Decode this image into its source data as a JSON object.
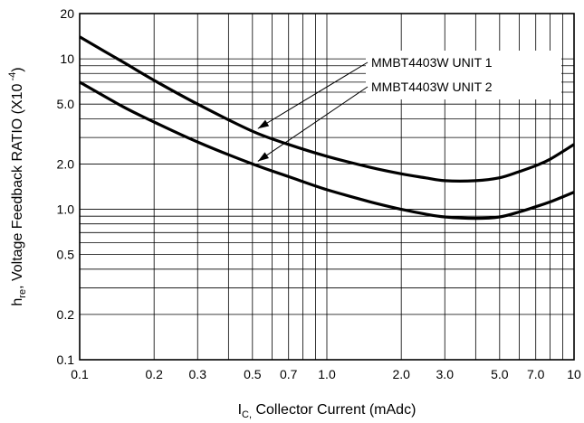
{
  "chart_data": {
    "type": "line",
    "x_scale": "log",
    "y_scale": "log",
    "xlim": [
      0.1,
      10
    ],
    "ylim": [
      0.1,
      20
    ],
    "grid": true,
    "x_ticks": [
      {
        "v": 0.1,
        "label": "0.1"
      },
      {
        "v": 0.2,
        "label": "0.2"
      },
      {
        "v": 0.3,
        "label": "0.3"
      },
      {
        "v": 0.5,
        "label": "0.5"
      },
      {
        "v": 0.7,
        "label": "0.7"
      },
      {
        "v": 1.0,
        "label": "1.0"
      },
      {
        "v": 2.0,
        "label": "2.0"
      },
      {
        "v": 3.0,
        "label": "3.0"
      },
      {
        "v": 5.0,
        "label": "5.0"
      },
      {
        "v": 7.0,
        "label": "7.0"
      },
      {
        "v": 10,
        "label": "10"
      }
    ],
    "y_ticks": [
      {
        "v": 0.1,
        "label": "0.1"
      },
      {
        "v": 0.2,
        "label": "0.2"
      },
      {
        "v": 0.5,
        "label": "0.5"
      },
      {
        "v": 1.0,
        "label": "1.0"
      },
      {
        "v": 2.0,
        "label": "2.0"
      },
      {
        "v": 5.0,
        "label": "5.0"
      },
      {
        "v": 10,
        "label": "10"
      },
      {
        "v": 20,
        "label": "20"
      }
    ],
    "xlabel": {
      "main": "I",
      "sub": "C,",
      "rest": " Collector Current (mAdc)"
    },
    "ylabel": {
      "main": "h",
      "sub": "re",
      "rest": ", Voltage Feedback RATIO (X10",
      "sup": " -4",
      "end": ")"
    },
    "series": [
      {
        "name": "MMBT4403W UNIT 1",
        "x": [
          0.1,
          0.15,
          0.2,
          0.3,
          0.5,
          0.7,
          1.0,
          1.5,
          2.0,
          2.5,
          3.0,
          4.0,
          5.0,
          6.0,
          7.0,
          8.0,
          10
        ],
        "y": [
          14,
          9.5,
          7.2,
          5.0,
          3.3,
          2.7,
          2.25,
          1.9,
          1.72,
          1.62,
          1.55,
          1.55,
          1.62,
          1.78,
          1.95,
          2.15,
          2.7
        ]
      },
      {
        "name": "MMBT4403W UNIT 2",
        "x": [
          0.1,
          0.15,
          0.2,
          0.3,
          0.5,
          0.7,
          1.0,
          1.5,
          2.0,
          2.5,
          3.0,
          4.0,
          5.0,
          6.0,
          7.0,
          8.0,
          10
        ],
        "y": [
          7.0,
          4.8,
          3.8,
          2.8,
          2.0,
          1.65,
          1.35,
          1.12,
          1.0,
          0.93,
          0.89,
          0.87,
          0.89,
          0.96,
          1.04,
          1.12,
          1.3
        ]
      }
    ],
    "legend": {
      "position": "top-right",
      "entries": [
        "MMBT4403W UNIT 1",
        "MMBT4403W UNIT 2"
      ],
      "arrows": [
        {
          "series": 0,
          "points_to_x": 0.5,
          "points_to_y": 3.3
        },
        {
          "series": 1,
          "points_to_x": 0.5,
          "points_to_y": 2.0
        }
      ]
    }
  }
}
